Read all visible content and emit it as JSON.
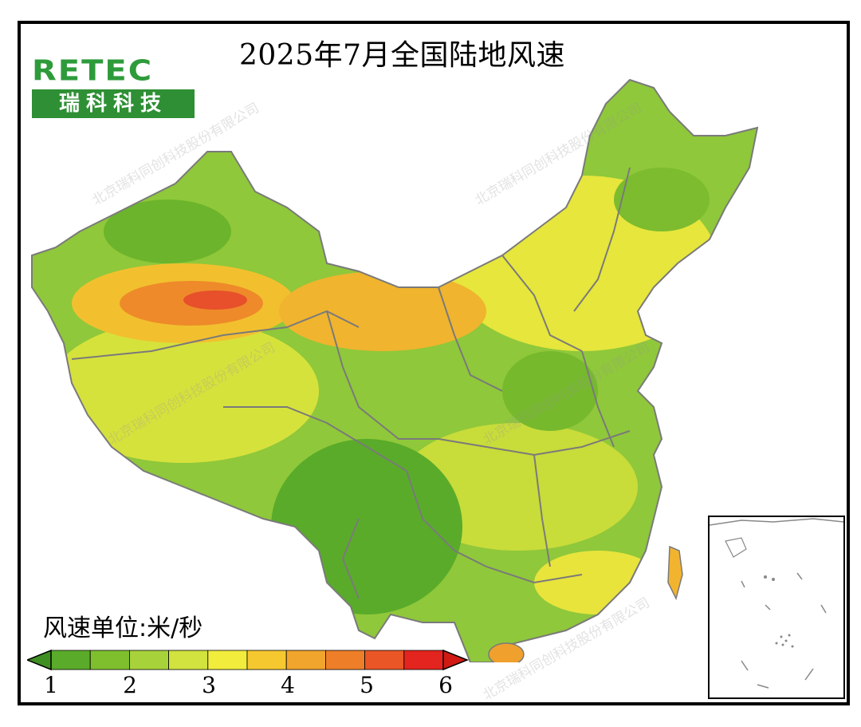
{
  "title": "2025年7月全国陆地风速",
  "logo": {
    "text_en": "RETEC",
    "text_cn": "瑞科科技"
  },
  "unit_label": "风速单位:米/秒",
  "watermark": "北京瑞科同创科技股份有限公司",
  "legend": {
    "ticks": [
      "1",
      "2",
      "3",
      "4",
      "5",
      "6"
    ],
    "colors": [
      "#5aab2a",
      "#7fbf2e",
      "#a8d23a",
      "#d2e23e",
      "#f2ec3c",
      "#f6c830",
      "#f2a52c",
      "#ee7f28",
      "#ea5626",
      "#e3241f"
    ],
    "left_arrow_color": "#3f8f23",
    "right_arrow_color": "#d11a14"
  },
  "colors": {
    "border": "#7a7a7a",
    "frame": "#000000"
  }
}
